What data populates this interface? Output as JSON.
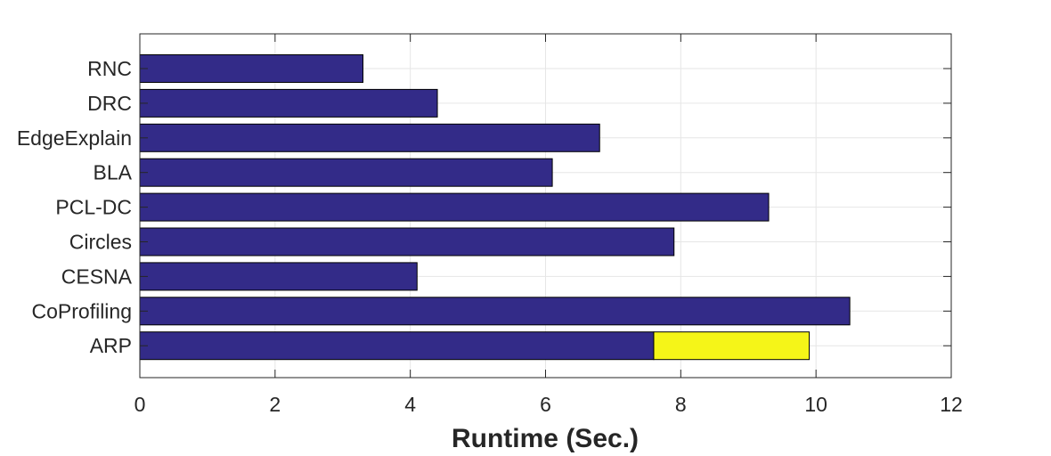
{
  "chart_data": {
    "type": "bar",
    "orientation": "horizontal",
    "stacked": true,
    "title": "",
    "xlabel": "Runtime (Sec.)",
    "ylabel": "",
    "categories": [
      "RNC",
      "DRC",
      "EdgeExplain",
      "BLA",
      "PCL-DC",
      "Circles",
      "CESNA",
      "CoProfiling",
      "ARP"
    ],
    "series": [
      {
        "values": [
          3.3,
          4.4,
          6.8,
          6.1,
          9.3,
          7.9,
          4.1,
          10.5,
          7.6
        ],
        "color": "#332b88"
      },
      {
        "values": [
          0,
          0,
          0,
          0,
          0,
          0,
          0,
          0,
          2.3
        ],
        "color": "#f5f518"
      }
    ],
    "xlim": [
      0,
      12
    ],
    "xticks": [
      0,
      2,
      4,
      6,
      8,
      10,
      12
    ],
    "grid": true
  }
}
